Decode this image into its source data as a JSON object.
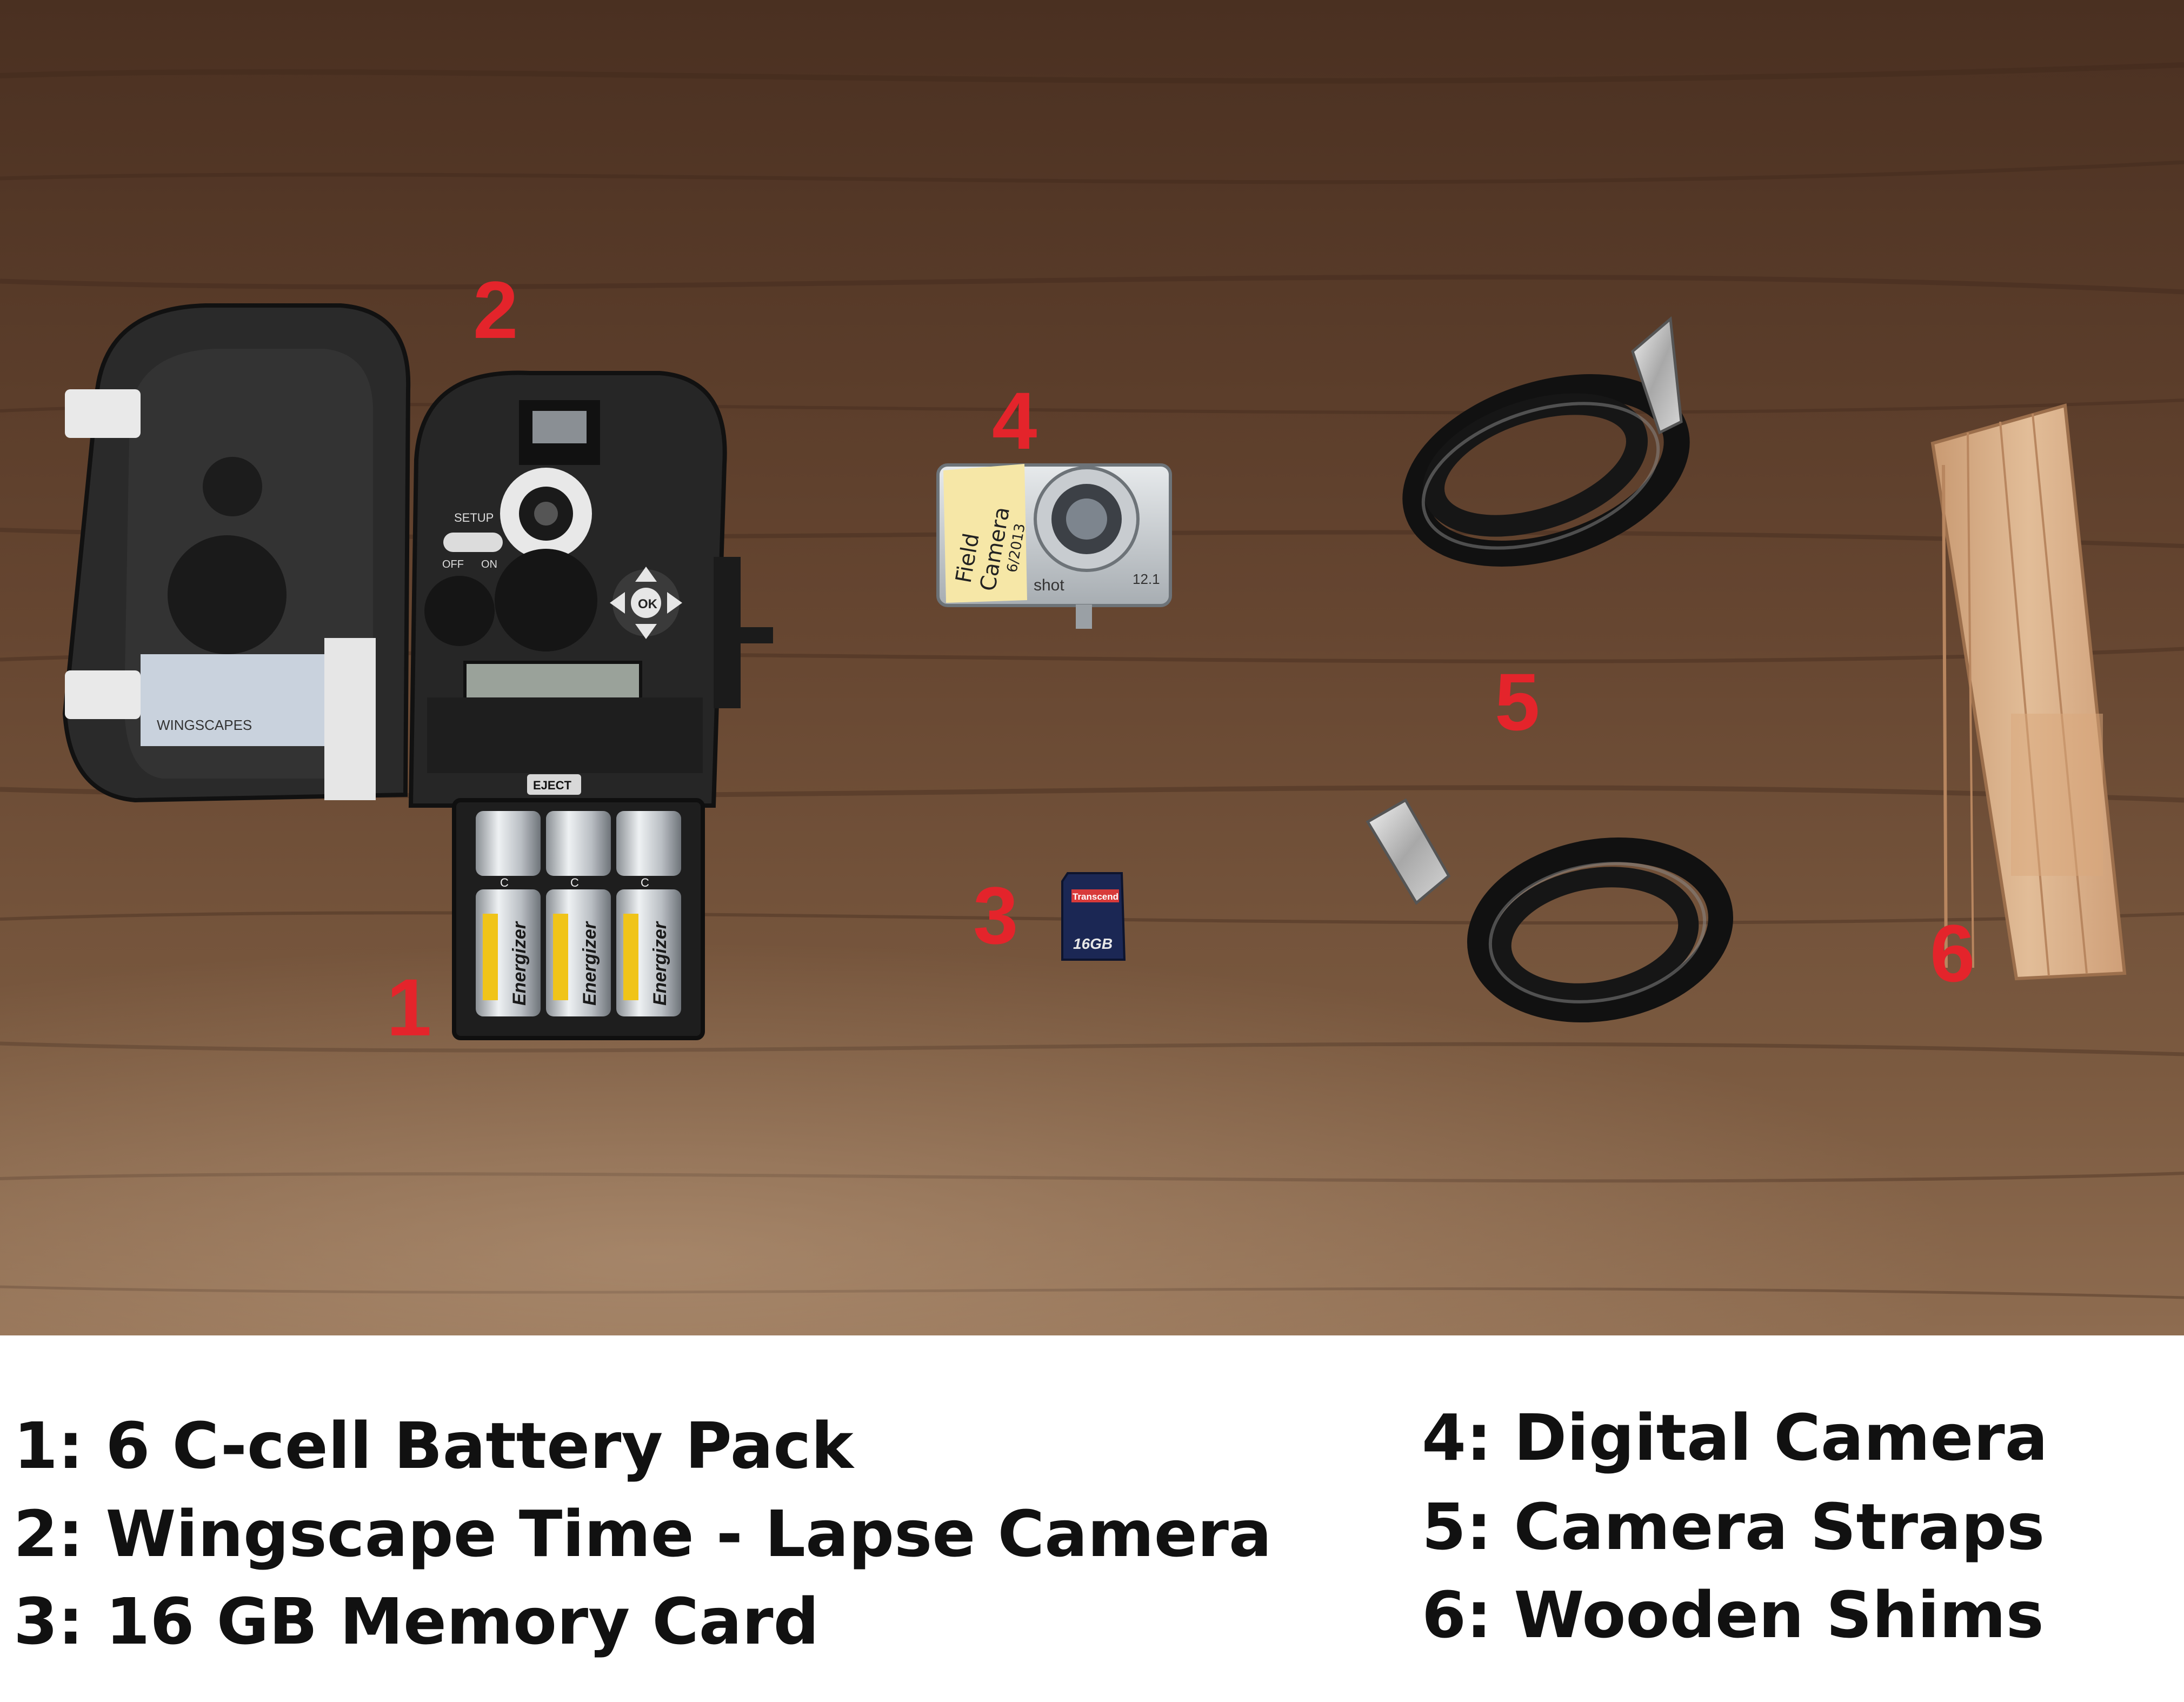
{
  "photo": {
    "colors": {
      "table": "#6a4a33",
      "label_red": "#e4242b",
      "device": "#262626"
    },
    "callouts": [
      {
        "number": "1"
      },
      {
        "number": "2"
      },
      {
        "number": "3"
      },
      {
        "number": "4"
      },
      {
        "number": "5"
      },
      {
        "number": "6"
      }
    ],
    "device_text": {
      "eject": "EJECT",
      "setup": "SETUP",
      "off": "OFF",
      "on": "ON",
      "ok": "OK",
      "brand": "WINGSCAPES"
    },
    "battery_text": {
      "brand": "Energizer",
      "size": "C"
    },
    "camera_note": {
      "line1": "Field",
      "line2": "Camera",
      "line3": "6/2013"
    },
    "camera_text": {
      "model": "shot",
      "megapixels": "12.1"
    },
    "sd_card_text": {
      "brand": "Transcend",
      "capacity": "16GB"
    }
  },
  "legend": {
    "items": [
      {
        "text": "1: 6 C-cell Battery Pack"
      },
      {
        "text": "2: Wingscape Time - Lapse Camera"
      },
      {
        "text": "3: 16 GB Memory Card"
      },
      {
        "text": "4: Digital Camera"
      },
      {
        "text": "5: Camera Straps"
      },
      {
        "text": "6: Wooden Shims"
      }
    ]
  }
}
